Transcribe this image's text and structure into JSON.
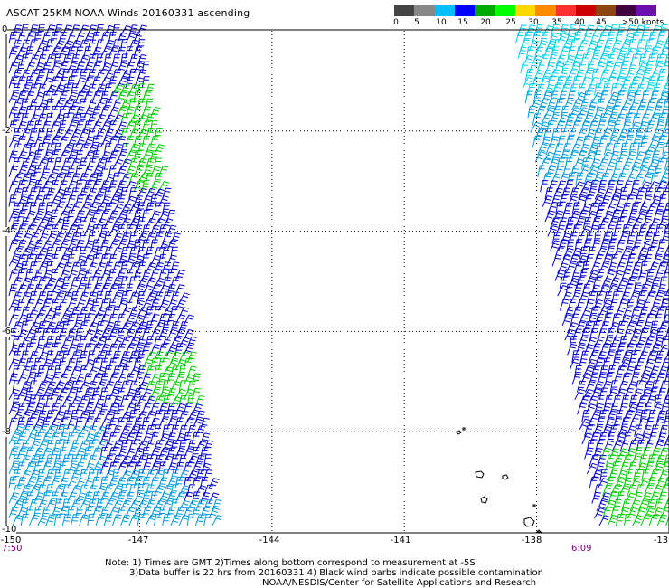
{
  "title": "ASCAT 25KM NOAA Winds 20160331 ascending",
  "colorbar": {
    "labels": [
      "0",
      "5",
      "10",
      "15",
      "20",
      "25",
      "30",
      "35",
      "40",
      "45",
      ">50 knots"
    ],
    "colors": [
      "#444444",
      "#888888",
      "#00bfff",
      "#0000ff",
      "#00aa00",
      "#00ff00",
      "#ffd700",
      "#ff8c00",
      "#ff3030",
      "#cc0000",
      "#8b4513",
      "#400040",
      "#6a0dad"
    ]
  },
  "map": {
    "lon_labels": [
      "-150",
      "-147",
      "-144",
      "-141",
      "-138",
      "-13"
    ],
    "lat_labels": [
      "0",
      "-2",
      "-4",
      "-6",
      "-8",
      "-10"
    ],
    "lon_range": [
      -150,
      -135
    ],
    "lat_range": [
      -10,
      0
    ],
    "grid": true,
    "wind_colors": {
      "cyan": "#00ccee",
      "light_blue": "#0099dd",
      "blue": "#0000cc",
      "green": "#00cc00"
    }
  },
  "times": {
    "left": "7:50",
    "right": "6:09"
  },
  "notes": {
    "line1": "Note: 1) Times are GMT 2)Times along bottom correspond to measurement at -5S",
    "line2": "3)Data buffer is 22 hrs from 20160331 4) Black wind barbs indicate possible contamination",
    "line3": "NOAA/NESDIS/Center for Satellite Applications and Research"
  }
}
